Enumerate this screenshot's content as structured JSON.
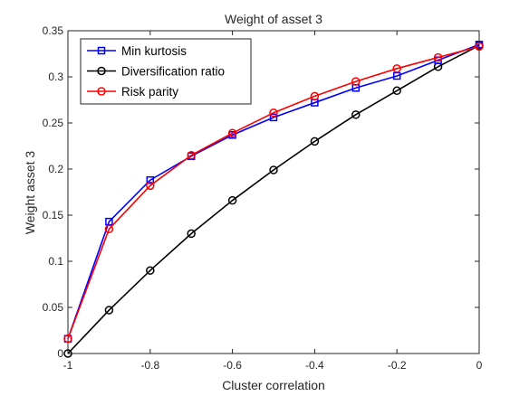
{
  "chart_data": {
    "type": "line",
    "title": "Weight of asset 3",
    "xlabel": "Cluster correlation",
    "ylabel": "Weight asset 3",
    "xlim": [
      -1,
      0
    ],
    "ylim": [
      0,
      0.35
    ],
    "xticks": [
      -1,
      -0.8,
      -0.6,
      -0.4,
      -0.2,
      0
    ],
    "xtick_labels": [
      "-1",
      "-0.8",
      "-0.6",
      "-0.4",
      "-0.2",
      "0"
    ],
    "yticks": [
      0,
      0.05,
      0.1,
      0.15,
      0.2,
      0.25,
      0.3,
      0.35
    ],
    "ytick_labels": [
      "0",
      "0.05",
      "0.1",
      "0.15",
      "0.2",
      "0.25",
      "0.3",
      "0.35"
    ],
    "grid": false,
    "legend_position": "top-left",
    "x": [
      -1,
      -0.9,
      -0.8,
      -0.7,
      -0.6,
      -0.5,
      -0.4,
      -0.3,
      -0.2,
      -0.1,
      0
    ],
    "series": [
      {
        "name": "Min kurtosis",
        "color": "#0000ff",
        "marker": "square",
        "values": [
          0.016,
          0.143,
          0.188,
          0.214,
          0.237,
          0.256,
          0.272,
          0.288,
          0.301,
          0.318,
          0.335
        ]
      },
      {
        "name": "Diversification ratio",
        "color": "#000000",
        "marker": "circle",
        "values": [
          0.0,
          0.047,
          0.09,
          0.13,
          0.166,
          0.199,
          0.23,
          0.259,
          0.285,
          0.311,
          0.334
        ]
      },
      {
        "name": "Risk parity",
        "color": "#ff0000",
        "marker": "circle",
        "values": [
          0.016,
          0.135,
          0.182,
          0.215,
          0.239,
          0.261,
          0.279,
          0.295,
          0.309,
          0.321,
          0.333
        ]
      }
    ]
  }
}
